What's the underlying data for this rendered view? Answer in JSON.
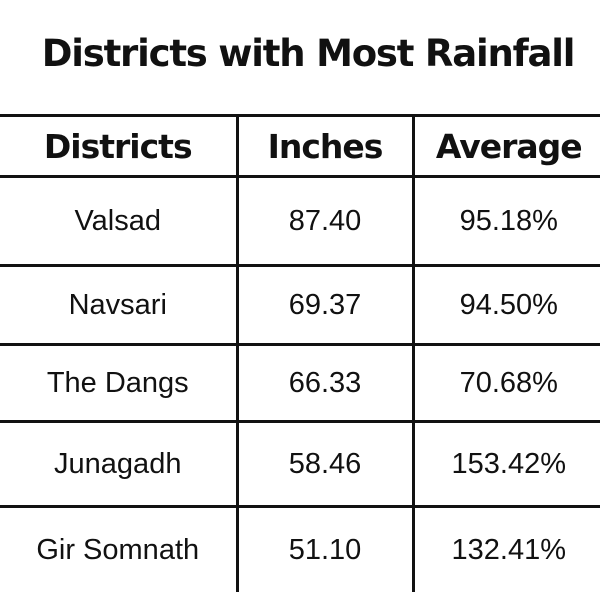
{
  "chart_data": {
    "type": "table",
    "title": "Districts with Most Rainfall",
    "columns": [
      "Districts",
      "Inches",
      "Average"
    ],
    "rows": [
      [
        "Valsad",
        "87.40",
        "95.18%"
      ],
      [
        "Navsari",
        "69.37",
        "94.50%"
      ],
      [
        "The Dangs",
        "66.33",
        "70.68%"
      ],
      [
        "Junagadh",
        "58.46",
        "153.42%"
      ],
      [
        "Gir Somnath",
        "51.10",
        "132.41%"
      ]
    ]
  }
}
